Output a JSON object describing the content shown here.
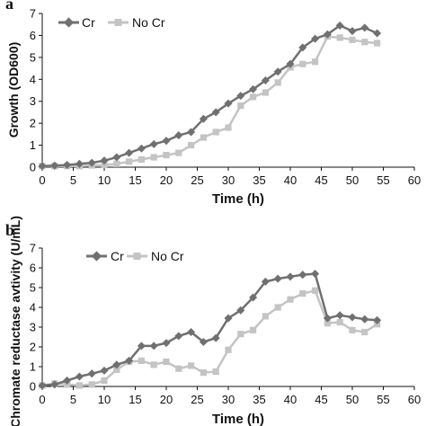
{
  "chart_data": [
    {
      "panel_label": "a",
      "type": "line",
      "xlabel": "Time (h)",
      "ylabel": "Growth (OD600)",
      "xlim": [
        0,
        60
      ],
      "ylim": [
        0,
        7
      ],
      "xticks": [
        "0",
        "5",
        "10",
        "15",
        "20",
        "25",
        "30",
        "35",
        "40",
        "45",
        "50",
        "55",
        "60"
      ],
      "yticks": [
        "0",
        "1",
        "2",
        "3",
        "4",
        "5",
        "6",
        "7"
      ],
      "legend_position": "top-left",
      "series": [
        {
          "name": "Cr",
          "color": "#707070",
          "marker": "diamond",
          "x": [
            0,
            2,
            4,
            6,
            8,
            10,
            12,
            14,
            16,
            18,
            20,
            22,
            24,
            26,
            28,
            30,
            32,
            34,
            36,
            38,
            40,
            42,
            44,
            46,
            48,
            50,
            52,
            54
          ],
          "y": [
            0.05,
            0.07,
            0.1,
            0.15,
            0.2,
            0.3,
            0.45,
            0.65,
            0.85,
            1.05,
            1.2,
            1.45,
            1.6,
            2.2,
            2.5,
            2.9,
            3.25,
            3.55,
            3.95,
            4.35,
            4.7,
            5.45,
            5.85,
            6.05,
            6.45,
            6.2,
            6.35,
            6.1
          ]
        },
        {
          "name": "No Cr",
          "color": "#c4c4c4",
          "marker": "square",
          "x": [
            0,
            2,
            4,
            6,
            8,
            10,
            12,
            14,
            16,
            18,
            20,
            22,
            24,
            26,
            28,
            30,
            32,
            34,
            36,
            38,
            40,
            42,
            44,
            46,
            48,
            50,
            52,
            54
          ],
          "y": [
            0.05,
            0.05,
            0.05,
            0.05,
            0.08,
            0.1,
            0.15,
            0.25,
            0.35,
            0.45,
            0.55,
            0.65,
            1.0,
            1.35,
            1.6,
            1.8,
            2.8,
            3.2,
            3.4,
            3.85,
            4.55,
            4.7,
            4.8,
            5.95,
            5.9,
            5.8,
            5.7,
            5.65
          ]
        }
      ]
    },
    {
      "panel_label": "b",
      "type": "line",
      "xlabel": "Time (h)",
      "ylabel": "Chromate reductase avtivity (U/mL)",
      "xlim": [
        0,
        60
      ],
      "ylim": [
        0,
        7
      ],
      "xticks": [
        "0",
        "5",
        "10",
        "15",
        "20",
        "25",
        "30",
        "35",
        "40",
        "45",
        "50",
        "55",
        "60"
      ],
      "yticks": [
        "0",
        "1",
        "2",
        "3",
        "4",
        "5",
        "6",
        "7"
      ],
      "legend_position": "top-left",
      "series": [
        {
          "name": "Cr",
          "color": "#707070",
          "marker": "diamond",
          "x": [
            0,
            2,
            4,
            6,
            8,
            10,
            12,
            14,
            16,
            18,
            20,
            22,
            24,
            26,
            28,
            30,
            32,
            34,
            36,
            38,
            40,
            42,
            44,
            46,
            48,
            50,
            52,
            54
          ],
          "y": [
            0.05,
            0.1,
            0.3,
            0.5,
            0.65,
            0.8,
            1.1,
            1.3,
            2.05,
            2.05,
            2.2,
            2.55,
            2.75,
            2.25,
            2.45,
            3.45,
            3.85,
            4.5,
            5.3,
            5.45,
            5.55,
            5.65,
            5.7,
            3.45,
            3.6,
            3.5,
            3.4,
            3.35
          ]
        },
        {
          "name": "No Cr",
          "color": "#c4c4c4",
          "marker": "square",
          "x": [
            0,
            2,
            4,
            6,
            8,
            10,
            12,
            14,
            16,
            18,
            20,
            22,
            24,
            26,
            28,
            30,
            32,
            34,
            36,
            38,
            40,
            42,
            44,
            46,
            48,
            50,
            52,
            54
          ],
          "y": [
            0.05,
            0.15,
            0.1,
            0.05,
            0.1,
            0.3,
            0.85,
            1.25,
            1.3,
            1.1,
            1.25,
            0.9,
            1.05,
            0.7,
            0.75,
            1.85,
            2.65,
            2.85,
            3.55,
            4.0,
            4.4,
            4.7,
            4.85,
            3.2,
            3.25,
            2.85,
            2.75,
            3.15
          ]
        }
      ]
    }
  ]
}
